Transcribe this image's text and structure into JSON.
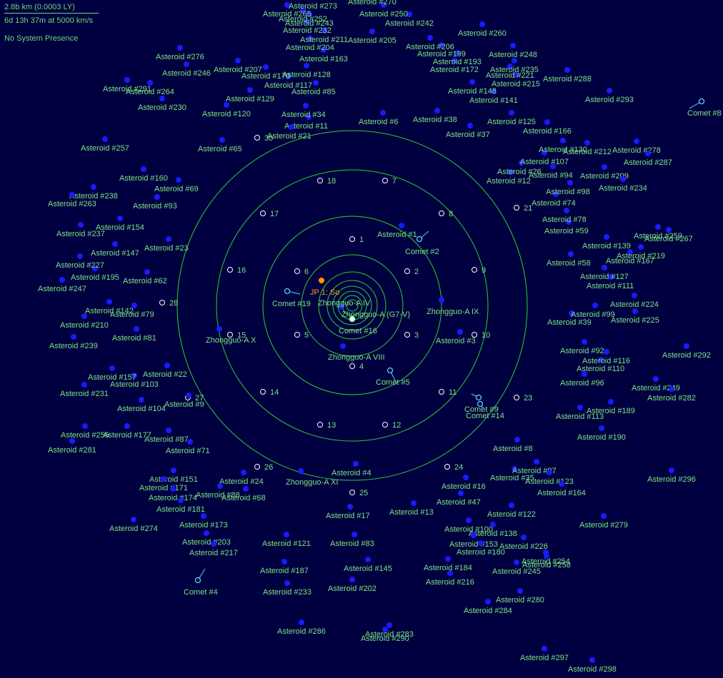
{
  "hud": {
    "scale": "2.8b km  (0.0003 LY)",
    "travel": "6d 13h 37m at 5000 km/s",
    "presence": "No System Presence"
  },
  "colors": {
    "background": "#000040",
    "orbit": "#2ecc2e",
    "label": "#7ee27e",
    "asteroid": "#1a1aff",
    "jump_point": "#ff9900"
  },
  "planets": [
    {
      "name": "Zhongguo-A IV"
    },
    {
      "name": "Zhongguo-A VIII"
    },
    {
      "name": "Zhongguo-A IX"
    },
    {
      "name": "Zhongguo-A X"
    },
    {
      "name": "Zhongguo-A XI"
    }
  ],
  "star": {
    "name": "Zhongguo-A (G7-V)"
  },
  "jump_point": {
    "name": "JP 1: So"
  },
  "comets": [
    "Comet #2",
    "Comet #4",
    "Comet #5",
    "Comet #8",
    "Comet #9",
    "Comet #14",
    "Comet #16",
    "Comet #19"
  ],
  "lagrange_points": [
    "1",
    "2",
    "3",
    "4",
    "5",
    "6",
    "7",
    "8",
    "9",
    "10",
    "11",
    "12",
    "13",
    "14",
    "15",
    "16",
    "17",
    "18",
    "21",
    "23",
    "24",
    "25",
    "26",
    "27",
    "28",
    "30"
  ],
  "asteroids": [
    "Asteroid #1",
    "Asteroid #3",
    "Asteroid #4",
    "Asteroid #6",
    "Asteroid #8",
    "Asteroid #9",
    "Asteroid #11",
    "Asteroid #12",
    "Asteroid #13",
    "Asteroid #16",
    "Asteroid #17",
    "Asteroid #21",
    "Asteroid #22",
    "Asteroid #23",
    "Asteroid #24",
    "Asteroid #26",
    "Asteroid #34",
    "Asteroid #35",
    "Asteroid #37",
    "Asteroid #38",
    "Asteroid #39",
    "Asteroid #47",
    "Asteroid #58",
    "Asteroid #59",
    "Asteroid #62",
    "Asteroid #65",
    "Asteroid #68",
    "Asteroid #69",
    "Asteroid #71",
    "Asteroid #74",
    "Asteroid #78",
    "Asteroid #79",
    "Asteroid #81",
    "Asteroid #83",
    "Asteroid #85",
    "Asteroid #87",
    "Asteroid #88",
    "Asteroid #92",
    "Asteroid #93",
    "Asteroid #94",
    "Asteroid #96",
    "Asteroid #97",
    "Asteroid #98",
    "Asteroid #99",
    "Asteroid #100",
    "Asteroid #103",
    "Asteroid #104",
    "Asteroid #107",
    "Asteroid #110",
    "Asteroid #111",
    "Asteroid #113",
    "Asteroid #116",
    "Asteroid #117",
    "Asteroid #120",
    "Asteroid #121",
    "Asteroid #122",
    "Asteroid #123",
    "Asteroid #125",
    "Asteroid #127",
    "Asteroid #128",
    "Asteroid #129",
    "Asteroid #130",
    "Asteroid #138",
    "Asteroid #139",
    "Asteroid #141",
    "Asteroid #142",
    "Asteroid #145",
    "Asteroid #147",
    "Asteroid #148",
    "Asteroid #151",
    "Asteroid #153",
    "Asteroid #154",
    "Asteroid #157",
    "Asteroid #160",
    "Asteroid #163",
    "Asteroid #164",
    "Asteroid #166",
    "Asteroid #167",
    "Asteroid #170",
    "Asteroid #171",
    "Asteroid #172",
    "Asteroid #173",
    "Asteroid #174",
    "Asteroid #177",
    "Asteroid #180",
    "Asteroid #181",
    "Asteroid #184",
    "Asteroid #187",
    "Asteroid #189",
    "Asteroid #190",
    "Asteroid #193",
    "Asteroid #195",
    "Asteroid #199",
    "Asteroid #202",
    "Asteroid #203",
    "Asteroid #204",
    "Asteroid #205",
    "Asteroid #206",
    "Asteroid #207",
    "Asteroid #209",
    "Asteroid #210",
    "Asteroid #211",
    "Asteroid #212",
    "Asteroid #215",
    "Asteroid #216",
    "Asteroid #217",
    "Asteroid #219",
    "Asteroid #221",
    "Asteroid #224",
    "Asteroid #225",
    "Asteroid #226",
    "Asteroid #227",
    "Asteroid #230",
    "Asteroid #231",
    "Asteroid #232",
    "Asteroid #233",
    "Asteroid #234",
    "Asteroid #235",
    "Asteroid #237",
    "Asteroid #238",
    "Asteroid #239",
    "Asteroid #242",
    "Asteroid #243",
    "Asteroid #245",
    "Asteroid #246",
    "Asteroid #247",
    "Asteroid #248",
    "Asteroid #249",
    "Asteroid #250",
    "Asteroid #252",
    "Asteroid #254",
    "Asteroid #255",
    "Asteroid #257",
    "Asteroid #258",
    "Asteroid #259",
    "Asteroid #260",
    "Asteroid #263",
    "Asteroid #264",
    "Asteroid #265",
    "Asteroid #267",
    "Asteroid #270",
    "Asteroid #273",
    "Asteroid #274",
    "Asteroid #276",
    "Asteroid #278",
    "Asteroid #279",
    "Asteroid #280",
    "Asteroid #281",
    "Asteroid #282",
    "Asteroid #283",
    "Asteroid #284",
    "Asteroid #286",
    "Asteroid #287",
    "Asteroid #288",
    "Asteroid #290",
    "Asteroid #291",
    "Asteroid #292",
    "Asteroid #293",
    "Asteroid #296",
    "Asteroid #297",
    "Asteroid #298"
  ]
}
